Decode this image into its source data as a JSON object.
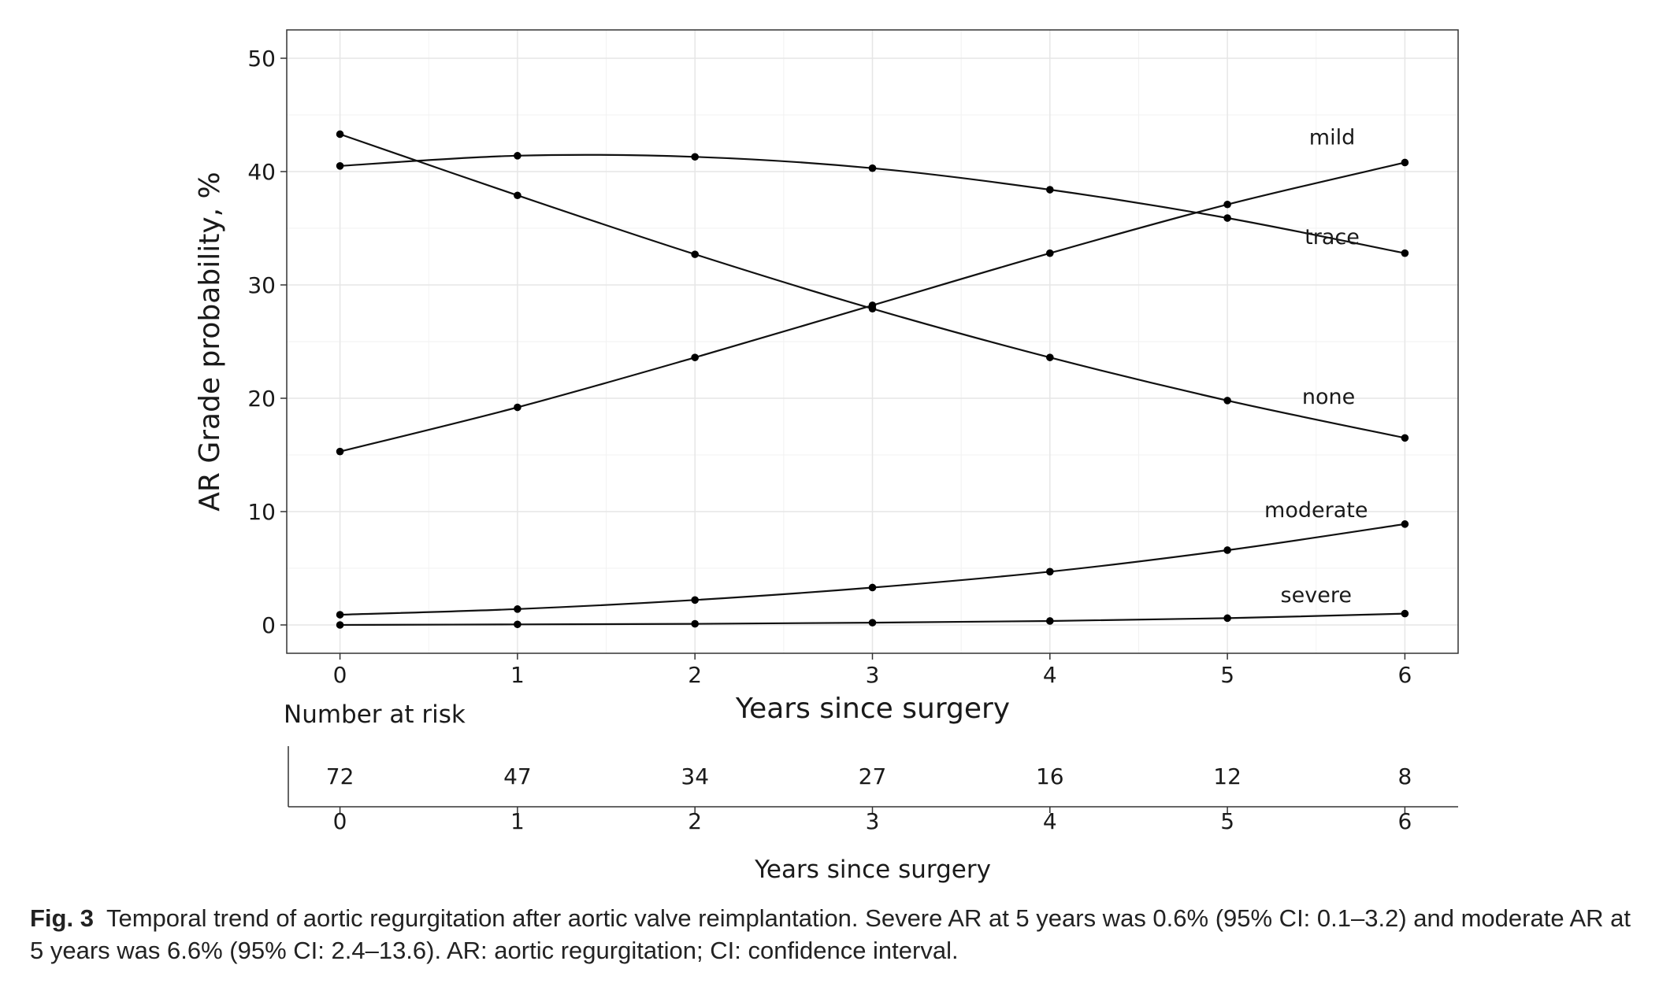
{
  "chart_data": {
    "type": "line",
    "title": "",
    "xlabel": "Years since surgery",
    "ylabel": "AR Grade probability, %",
    "xlim": [
      -0.3,
      6.3
    ],
    "ylim": [
      -2.5,
      52.5
    ],
    "x": [
      0,
      1,
      2,
      3,
      4,
      5,
      6
    ],
    "xticks": [
      "0",
      "1",
      "2",
      "3",
      "4",
      "5",
      "6"
    ],
    "yticks": [
      "0",
      "10",
      "20",
      "30",
      "40",
      "50"
    ],
    "ytick_values": [
      0,
      10,
      20,
      30,
      40,
      50
    ],
    "grid": true,
    "series": [
      {
        "name": "mild",
        "values": [
          15.3,
          19.2,
          23.6,
          28.2,
          32.8,
          37.1,
          40.8
        ]
      },
      {
        "name": "trace",
        "values": [
          40.5,
          41.4,
          41.3,
          40.3,
          38.4,
          35.9,
          32.8
        ]
      },
      {
        "name": "none",
        "values": [
          43.3,
          37.9,
          32.7,
          27.9,
          23.6,
          19.8,
          16.5
        ]
      },
      {
        "name": "moderate",
        "values": [
          0.9,
          1.4,
          2.2,
          3.3,
          4.7,
          6.6,
          8.9
        ]
      },
      {
        "name": "severe",
        "values": [
          0.0,
          0.05,
          0.1,
          0.2,
          0.35,
          0.6,
          1.0
        ]
      }
    ]
  },
  "risk_table": {
    "title": "Number at risk",
    "counts": [
      "72",
      "47",
      "34",
      "27",
      "16",
      "12",
      "8"
    ],
    "xticks": [
      "0",
      "1",
      "2",
      "3",
      "4",
      "5",
      "6"
    ],
    "xlabel": "Years since surgery"
  },
  "caption": {
    "label": "Fig. 3",
    "text": "Temporal trend of aortic regurgitation after aortic valve reimplantation. Severe AR at 5 years was 0.6% (95% CI: 0.1–3.2) and moderate AR at 5 years was 6.6% (95% CI: 2.4–13.6). AR: aortic regurgitation; CI: confidence interval."
  }
}
